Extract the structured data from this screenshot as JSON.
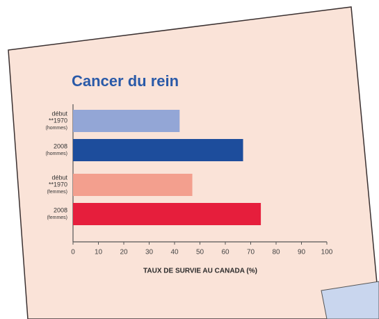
{
  "chart_data": {
    "type": "barh",
    "title": "Cancer du rein",
    "categories": [
      [
        "début",
        "**1970",
        "(hommes)"
      ],
      [
        "2008",
        "(hommes)"
      ],
      [
        "début",
        "**1970",
        "(femmes)"
      ],
      [
        "2008",
        "(femmes)"
      ]
    ],
    "values": [
      42,
      67,
      47,
      74
    ],
    "colors": [
      "#93a6d6",
      "#1d4d9c",
      "#f39f8e",
      "#e61e3c"
    ],
    "xlabel": "TAUX DE SURVIE AU CANADA (%)",
    "xlim": [
      0,
      100
    ],
    "xticks": [
      0,
      10,
      20,
      30,
      40,
      50,
      60,
      70,
      80,
      90,
      100
    ]
  }
}
